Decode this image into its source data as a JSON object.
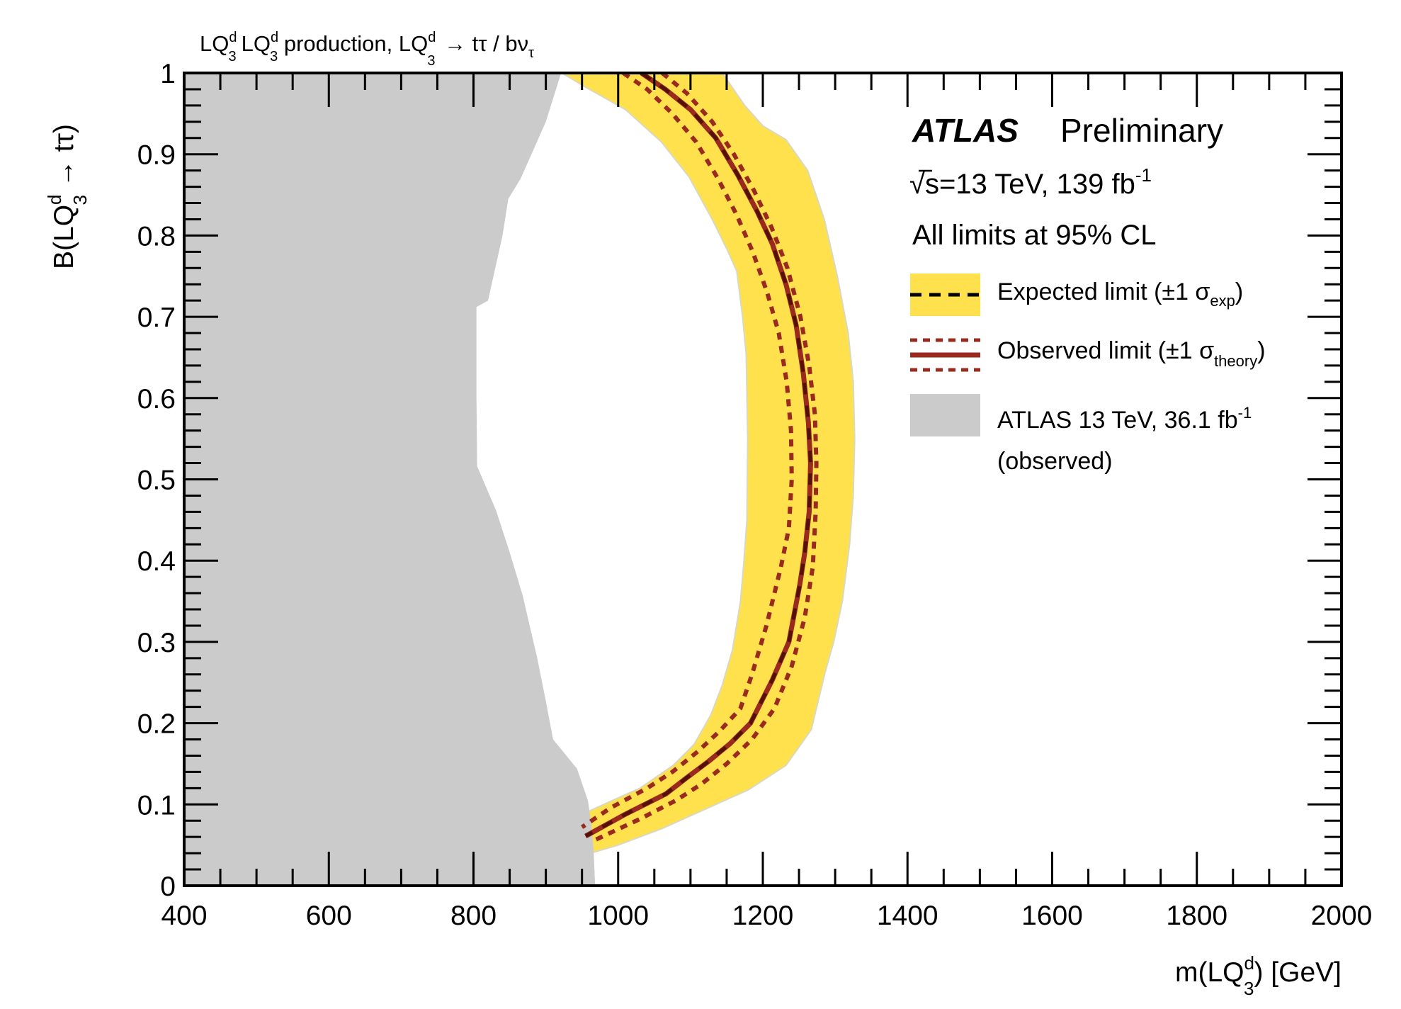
{
  "chart_data": {
    "type": "area",
    "title": "LQ3d LQ3d production, LQ3d → tτ / bντ",
    "title_parts": {
      "lq": "LQ",
      "sup": "d",
      "sub": "3",
      "production": " production, ",
      "arrow_text": " → tτ / bν",
      "tau_sub": "τ"
    },
    "xlabel": "m(LQ3d) [GeV]",
    "xlabel_parts": {
      "pre": "m(LQ",
      "sup": "d",
      "sub": "3",
      "post": ") [GeV]"
    },
    "ylabel": "B(LQ3d → tτ)",
    "ylabel_parts": {
      "pre": "B(LQ",
      "sup": "d",
      "sub": "3",
      "post": " → tτ)"
    },
    "xlim": [
      400,
      2000
    ],
    "ylim": [
      0,
      1
    ],
    "x_ticks": [
      400,
      600,
      800,
      1000,
      1200,
      1400,
      1600,
      1800,
      2000
    ],
    "x_tick_labels": [
      "400",
      "600",
      "800",
      "1000",
      "1200",
      "1400",
      "1600",
      "1800",
      "2000"
    ],
    "y_ticks": [
      0,
      0.1,
      0.2,
      0.3,
      0.4,
      0.5,
      0.6,
      0.7,
      0.8,
      0.9,
      1
    ],
    "y_tick_labels": [
      "0",
      "0.1",
      "0.2",
      "0.3",
      "0.4",
      "0.5",
      "0.6",
      "0.7",
      "0.8",
      "0.9",
      "1"
    ],
    "grid": false,
    "legend_position": "top-right",
    "annotations": {
      "atlas": "ATLAS",
      "preliminary": "Preliminary",
      "energy_pre": "s=13 TeV, 139 fb",
      "energy_sup": "-1",
      "sqrt_symbol": "√",
      "cl": "All limits at 95% CL"
    },
    "legend": [
      {
        "name": "expected",
        "label_pre": "Expected limit (±1 σ",
        "label_sub": "exp",
        "label_post": ")"
      },
      {
        "name": "observed",
        "label_pre": "Observed limit (±1 σ",
        "label_sub": "theory",
        "label_post": ")"
      },
      {
        "name": "previous",
        "label_pre": "ATLAS 13 TeV, 36.1 fb",
        "label_sup": "-1",
        "label_line2": "(observed)"
      }
    ],
    "colors": {
      "band": "#ffe04d",
      "observed": "#9a2a1e",
      "expected": "#000000",
      "previous": "#cbcbcb",
      "axis": "#000000"
    },
    "series": [
      {
        "name": "ATLAS 13 TeV, 36.1 fb-1 (observed) excluded boundary",
        "points": [
          [
            921,
            1.0
          ],
          [
            900,
            0.94
          ],
          [
            880,
            0.9
          ],
          [
            865,
            0.87
          ],
          [
            848,
            0.845
          ],
          [
            840,
            0.8
          ],
          [
            820,
            0.72
          ],
          [
            804,
            0.712
          ],
          [
            804,
            0.6
          ],
          [
            805,
            0.516
          ],
          [
            831,
            0.462
          ],
          [
            850,
            0.41
          ],
          [
            868,
            0.357
          ],
          [
            875,
            0.33
          ],
          [
            888,
            0.28
          ],
          [
            900,
            0.227
          ],
          [
            910,
            0.18
          ],
          [
            943,
            0.144
          ],
          [
            958,
            0.105
          ],
          [
            963,
            0.075
          ],
          [
            966,
            0.044
          ],
          [
            968,
            0.0
          ]
        ]
      },
      {
        "name": "Expected ±1σ band outer (high mass) edge",
        "points": [
          [
            1144,
            1.0
          ],
          [
            1175,
            0.96
          ],
          [
            1200,
            0.935
          ],
          [
            1232,
            0.918
          ],
          [
            1262,
            0.88
          ],
          [
            1285,
            0.82
          ],
          [
            1303,
            0.75
          ],
          [
            1318,
            0.68
          ],
          [
            1325,
            0.62
          ],
          [
            1327,
            0.55
          ],
          [
            1325,
            0.48
          ],
          [
            1320,
            0.42
          ],
          [
            1310,
            0.35
          ],
          [
            1298,
            0.3
          ],
          [
            1286,
            0.262
          ],
          [
            1267,
            0.192
          ],
          [
            1232,
            0.148
          ],
          [
            1180,
            0.118
          ],
          [
            1125,
            0.096
          ],
          [
            1060,
            0.07
          ],
          [
            1000,
            0.05
          ],
          [
            958,
            0.039
          ]
        ]
      },
      {
        "name": "Expected ±1σ band inner (low mass) edge",
        "points": [
          [
            922,
            1.0
          ],
          [
            960,
            0.98
          ],
          [
            1010,
            0.955
          ],
          [
            1060,
            0.915
          ],
          [
            1098,
            0.872
          ],
          [
            1130,
            0.82
          ],
          [
            1152,
            0.78
          ],
          [
            1164,
            0.756
          ],
          [
            1172,
            0.7
          ],
          [
            1177,
            0.654
          ],
          [
            1179,
            0.55
          ],
          [
            1178,
            0.45
          ],
          [
            1174,
            0.4
          ],
          [
            1169,
            0.349
          ],
          [
            1158,
            0.29
          ],
          [
            1144,
            0.247
          ],
          [
            1128,
            0.21
          ],
          [
            1105,
            0.174
          ],
          [
            1076,
            0.148
          ],
          [
            1030,
            0.12
          ],
          [
            990,
            0.104
          ],
          [
            943,
            0.085
          ]
        ]
      },
      {
        "name": "Observed limit",
        "points": [
          [
            1032,
            1.0
          ],
          [
            1065,
            0.98
          ],
          [
            1100,
            0.955
          ],
          [
            1135,
            0.92
          ],
          [
            1165,
            0.875
          ],
          [
            1192,
            0.83
          ],
          [
            1213,
            0.79
          ],
          [
            1232,
            0.74
          ],
          [
            1246,
            0.69
          ],
          [
            1256,
            0.63
          ],
          [
            1263,
            0.57
          ],
          [
            1266,
            0.52
          ],
          [
            1264,
            0.46
          ],
          [
            1258,
            0.41
          ],
          [
            1251,
            0.37
          ],
          [
            1236,
            0.3
          ],
          [
            1213,
            0.253
          ],
          [
            1183,
            0.2
          ],
          [
            1155,
            0.175
          ],
          [
            1125,
            0.153
          ],
          [
            1095,
            0.133
          ],
          [
            1066,
            0.113
          ],
          [
            1010,
            0.088
          ],
          [
            955,
            0.061
          ]
        ]
      },
      {
        "name": "Expected limit",
        "points": [
          [
            1032,
            1.0
          ],
          [
            1065,
            0.98
          ],
          [
            1100,
            0.955
          ],
          [
            1135,
            0.92
          ],
          [
            1165,
            0.875
          ],
          [
            1192,
            0.83
          ],
          [
            1213,
            0.79
          ],
          [
            1232,
            0.74
          ],
          [
            1246,
            0.69
          ],
          [
            1256,
            0.63
          ],
          [
            1263,
            0.57
          ],
          [
            1266,
            0.52
          ],
          [
            1264,
            0.46
          ],
          [
            1258,
            0.41
          ],
          [
            1251,
            0.37
          ],
          [
            1236,
            0.3
          ],
          [
            1213,
            0.253
          ],
          [
            1183,
            0.2
          ],
          [
            1155,
            0.175
          ],
          [
            1125,
            0.153
          ],
          [
            1095,
            0.133
          ],
          [
            1066,
            0.113
          ],
          [
            1010,
            0.088
          ],
          [
            955,
            0.061
          ]
        ]
      },
      {
        "name": "Observed limit +1σ theory",
        "points": [
          [
            1061,
            1.0
          ],
          [
            1095,
            0.975
          ],
          [
            1130,
            0.94
          ],
          [
            1160,
            0.9
          ],
          [
            1188,
            0.855
          ],
          [
            1212,
            0.81
          ],
          [
            1234,
            0.76
          ],
          [
            1252,
            0.7
          ],
          [
            1264,
            0.64
          ],
          [
            1272,
            0.58
          ],
          [
            1274,
            0.52
          ],
          [
            1273,
            0.46
          ],
          [
            1269,
            0.392
          ],
          [
            1258,
            0.33
          ],
          [
            1240,
            0.27
          ],
          [
            1216,
            0.218
          ],
          [
            1185,
            0.18
          ],
          [
            1150,
            0.15
          ],
          [
            1115,
            0.125
          ],
          [
            1080,
            0.105
          ],
          [
            1030,
            0.082
          ],
          [
            965,
            0.055
          ]
        ]
      },
      {
        "name": "Observed limit -1σ theory",
        "points": [
          [
            1007,
            1.0
          ],
          [
            1040,
            0.98
          ],
          [
            1075,
            0.95
          ],
          [
            1108,
            0.915
          ],
          [
            1138,
            0.87
          ],
          [
            1164,
            0.825
          ],
          [
            1186,
            0.78
          ],
          [
            1206,
            0.73
          ],
          [
            1222,
            0.68
          ],
          [
            1233,
            0.62
          ],
          [
            1239,
            0.56
          ],
          [
            1240,
            0.5
          ],
          [
            1236,
            0.44
          ],
          [
            1225,
            0.392
          ],
          [
            1205,
            0.32
          ],
          [
            1185,
            0.26
          ],
          [
            1169,
            0.218
          ],
          [
            1140,
            0.19
          ],
          [
            1110,
            0.165
          ],
          [
            1075,
            0.14
          ],
          [
            1040,
            0.12
          ],
          [
            990,
            0.096
          ],
          [
            950,
            0.072
          ]
        ]
      }
    ]
  }
}
